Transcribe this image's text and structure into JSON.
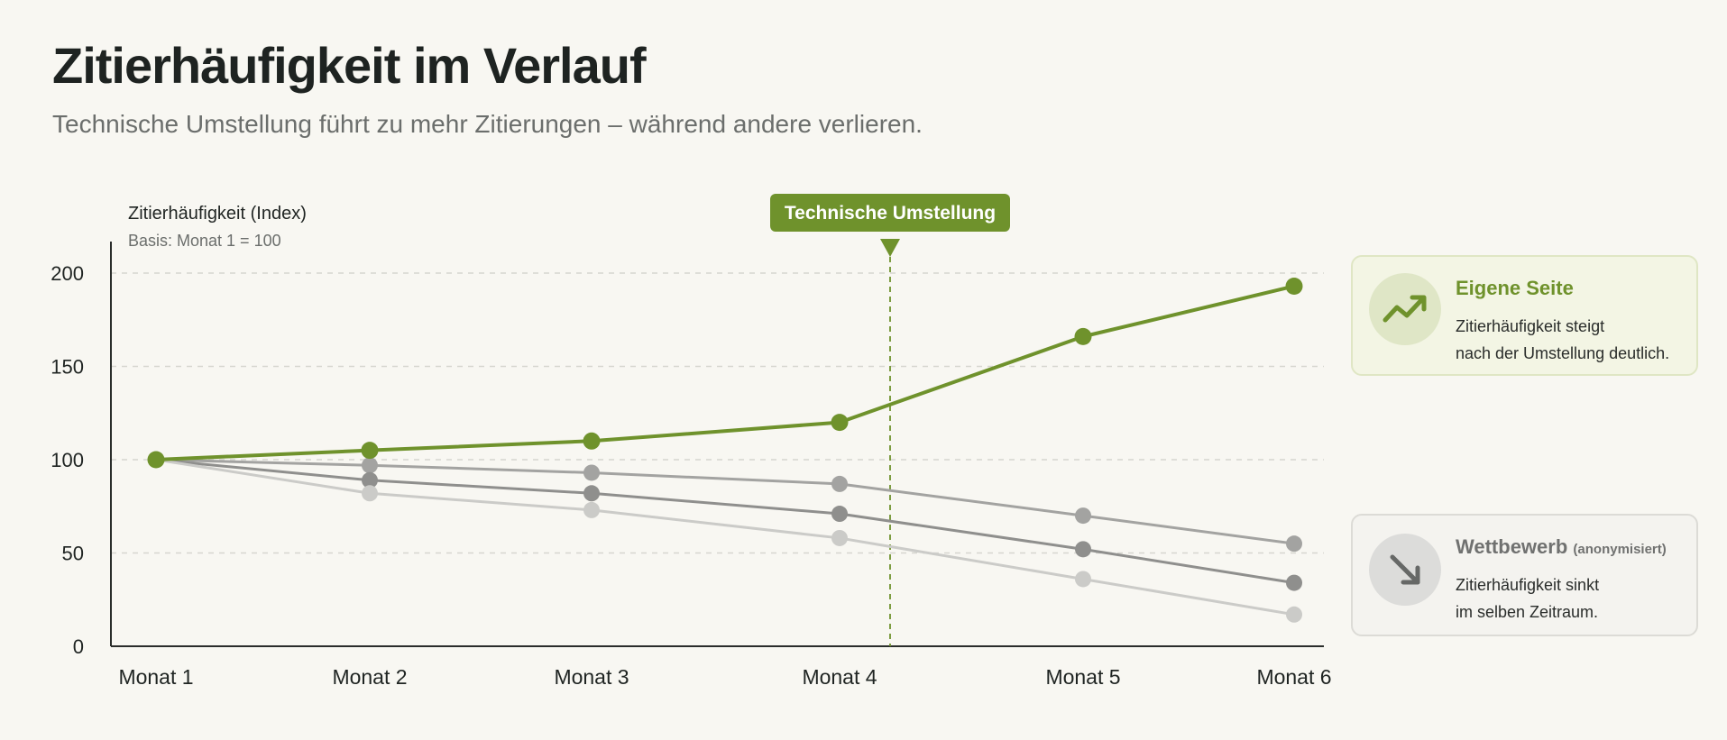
{
  "header": {
    "title": "Zitierhäufigkeit im Verlauf",
    "subtitle": "Technische Umstellung führt zu mehr Zitierungen – während andere verlieren."
  },
  "chart_data": {
    "type": "line",
    "ylabel": "Zitierhäufigkeit (Index)",
    "ylabel_note": "Basis: Monat 1 = 100",
    "categories": [
      "Monat 1",
      "Monat 2",
      "Monat 3",
      "Monat 4",
      "Monat 5",
      "Monat 6"
    ],
    "ylim": [
      0,
      200
    ],
    "yticks": [
      0,
      50,
      100,
      150,
      200
    ],
    "grid": true,
    "series": [
      {
        "key": "own",
        "color": "#6f922c",
        "values": [
          100,
          105,
          110,
          120,
          166,
          193
        ]
      },
      {
        "key": "comp1",
        "color": "#a3a3a1",
        "values": [
          100,
          97,
          93,
          87,
          70,
          55
        ]
      },
      {
        "key": "comp2",
        "color": "#8f8f8d",
        "values": [
          100,
          89,
          82,
          71,
          52,
          34
        ]
      },
      {
        "key": "comp3",
        "color": "#cbcbc8",
        "values": [
          100,
          82,
          73,
          58,
          36,
          17
        ]
      }
    ],
    "annotation": {
      "label": "Technische Umstellung",
      "x": 4,
      "color": "#6f922c"
    }
  },
  "legend": {
    "own": {
      "title": "Eigene Seite",
      "lines": [
        "Zitierhäufigkeit steigt",
        "nach der Umstellung deutlich."
      ],
      "icon": "trending-up-icon"
    },
    "competition": {
      "title": "Wettbewerb",
      "note": "(anonymisiert)",
      "lines": [
        "Zitierhäufigkeit sinkt",
        "im selben Zeitraum."
      ],
      "icon": "arrow-down-right-icon"
    }
  }
}
